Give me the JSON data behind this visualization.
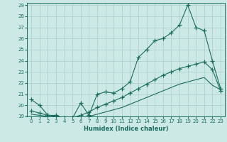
{
  "xlabel": "Humidex (Indice chaleur)",
  "background_color": "#cce9e5",
  "grid_color": "#aacfcc",
  "line_color": "#1a6b5e",
  "xlim": [
    -0.5,
    23.5
  ],
  "ylim": [
    19,
    29.2
  ],
  "yticks": [
    19,
    20,
    21,
    22,
    23,
    24,
    25,
    26,
    27,
    28,
    29
  ],
  "xticks": [
    0,
    1,
    2,
    3,
    4,
    5,
    6,
    7,
    8,
    9,
    10,
    11,
    12,
    13,
    14,
    15,
    16,
    17,
    18,
    19,
    20,
    21,
    22,
    23
  ],
  "series1_x": [
    0,
    1,
    2,
    3,
    4,
    5,
    6,
    7,
    8,
    9,
    10,
    11,
    12,
    13,
    14,
    15,
    16,
    17,
    18,
    19,
    20,
    21,
    22,
    23
  ],
  "series1_y": [
    20.5,
    20.0,
    19.1,
    19.1,
    18.85,
    18.85,
    20.2,
    19.1,
    21.0,
    21.2,
    21.1,
    21.5,
    22.1,
    24.3,
    25.0,
    25.8,
    26.0,
    26.5,
    27.2,
    29.0,
    27.0,
    26.7,
    24.0,
    21.5
  ],
  "series2_x": [
    0,
    1,
    2,
    3,
    4,
    5,
    6,
    7,
    8,
    9,
    10,
    11,
    12,
    13,
    14,
    15,
    16,
    17,
    18,
    19,
    20,
    21,
    22,
    23
  ],
  "series2_y": [
    19.5,
    19.3,
    19.1,
    19.0,
    18.85,
    18.9,
    19.1,
    19.4,
    19.8,
    20.1,
    20.4,
    20.7,
    21.1,
    21.5,
    21.9,
    22.3,
    22.7,
    23.0,
    23.3,
    23.5,
    23.7,
    23.9,
    23.2,
    21.3
  ],
  "series3_x": [
    0,
    1,
    2,
    3,
    4,
    5,
    6,
    7,
    8,
    9,
    10,
    11,
    12,
    13,
    14,
    15,
    16,
    17,
    18,
    19,
    20,
    21,
    22,
    23
  ],
  "series3_y": [
    19.2,
    19.1,
    19.0,
    18.9,
    18.85,
    18.85,
    18.9,
    19.0,
    19.2,
    19.4,
    19.6,
    19.8,
    20.1,
    20.4,
    20.7,
    21.0,
    21.3,
    21.6,
    21.9,
    22.1,
    22.3,
    22.5,
    21.8,
    21.4
  ]
}
